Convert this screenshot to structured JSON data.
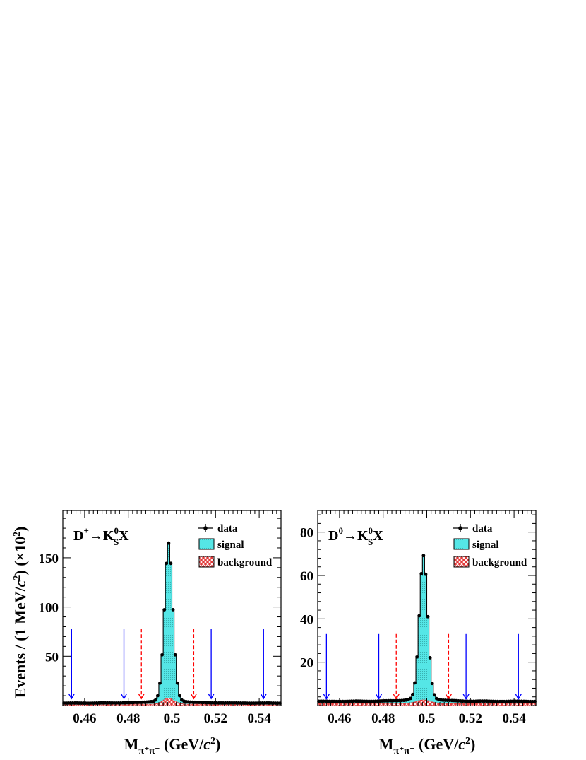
{
  "y_axis_title": {
    "main": "Events / (1 MeV/",
    "c": "c",
    "sup2": "2",
    "close": ") (×10",
    "exp": "2",
    "end": ")"
  },
  "legend": {
    "data": "data",
    "signal": "signal",
    "background": "background"
  },
  "colors": {
    "signal_fill": "#55e6e6",
    "signal_line": "#000000",
    "background_fill": "#e23a3a",
    "data_marker": "#000000",
    "arrow_blue": "#0000ff",
    "arrow_red": "#ff0000"
  },
  "chart_data": [
    {
      "type": "histogram",
      "decay": {
        "parent": "D",
        "parent_charge": "+",
        "arrow": "→",
        "K": "K",
        "K_sup": "0",
        "K_sub": "S",
        "X": "X"
      },
      "xlabel": {
        "M": "M",
        "sub": "π⁺π⁻",
        "unit_open": " (GeV/",
        "c": "c",
        "sup2": "2",
        "unit_close": ")"
      },
      "xlim": [
        0.45,
        0.55
      ],
      "ylim": [
        0,
        198
      ],
      "xticks": [
        0.46,
        0.48,
        0.5,
        0.52,
        0.54
      ],
      "xtick_labels": [
        "0.46",
        "0.48",
        "0.5",
        "0.52",
        "0.54"
      ],
      "yticks": [
        50,
        100,
        150
      ],
      "ytick_labels": [
        "50",
        "100",
        "150"
      ],
      "peak": {
        "mean": 0.4985,
        "height": 157,
        "width": 0.0019,
        "base": 2.4,
        "slope": 0.015,
        "bkg_height": 6,
        "bkg_width": 0.0025,
        "bkg_base": 1.4
      },
      "arrows_solid_blue": [
        0.454,
        0.478,
        0.518,
        0.542
      ],
      "arrows_dashed_red": [
        0.486,
        0.51
      ],
      "arrow_top": 78,
      "arrow_bottom": 7
    },
    {
      "type": "histogram",
      "decay": {
        "parent": "D",
        "parent_charge": "0",
        "arrow": "→",
        "K": "K",
        "K_sup": "0",
        "K_sub": "S",
        "X": "X"
      },
      "xlabel": {
        "M": "M",
        "sub": "π⁺π⁻",
        "unit_open": " (GeV/",
        "c": "c",
        "sup2": "2",
        "unit_close": ")"
      },
      "xlim": [
        0.45,
        0.55
      ],
      "ylim": [
        0,
        90
      ],
      "xticks": [
        0.46,
        0.48,
        0.5,
        0.52,
        0.54
      ],
      "xtick_labels": [
        "0.46",
        "0.48",
        "0.5",
        "0.52",
        "0.54"
      ],
      "yticks": [
        20,
        40,
        60,
        80
      ],
      "ytick_labels": [
        "20",
        "40",
        "60",
        "80"
      ],
      "peak": {
        "mean": 0.4985,
        "height": 65,
        "width": 0.0019,
        "base": 1.9,
        "slope": 0.005,
        "bkg_height": 1.6,
        "bkg_width": 0.003,
        "bkg_base": 1.0
      },
      "arrows_solid_blue": [
        0.454,
        0.478,
        0.518,
        0.542
      ],
      "arrows_dashed_red": [
        0.486,
        0.51
      ],
      "arrow_top": 33,
      "arrow_bottom": 3
    }
  ]
}
